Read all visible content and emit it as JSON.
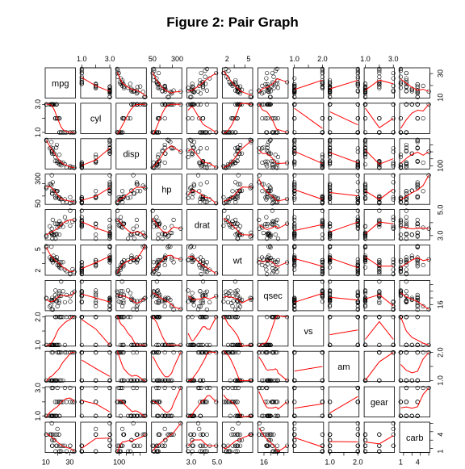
{
  "chart_data": {
    "type": "scatter",
    "title": "Figure 2: Pair Graph",
    "variables": [
      "mpg",
      "cyl",
      "disp",
      "hp",
      "drat",
      "wt",
      "qsec",
      "vs",
      "am",
      "gear",
      "carb"
    ],
    "axis_ticks": {
      "mpg": {
        "labels": [
          "10",
          "30"
        ],
        "range": [
          10.4,
          33.9
        ]
      },
      "cyl": {
        "labels": [
          "1.0",
          "3.0"
        ],
        "range": [
          1,
          3
        ]
      },
      "disp": {
        "labels": [
          "100"
        ],
        "range": [
          71.1,
          472
        ]
      },
      "hp": {
        "labels": [
          "50",
          "300"
        ],
        "range": [
          52,
          335
        ]
      },
      "drat": {
        "labels": [
          "3.0",
          "5.0"
        ],
        "range": [
          2.76,
          4.93
        ]
      },
      "wt": {
        "labels": [
          "2",
          "5"
        ],
        "range": [
          1.513,
          5.424
        ]
      },
      "qsec": {
        "labels": [
          "16"
        ],
        "range": [
          14.5,
          22.9
        ]
      },
      "vs": {
        "labels": [
          "1.0",
          "2.0"
        ],
        "range": [
          1,
          2
        ]
      },
      "am": {
        "labels": [
          "1.0",
          "2.0"
        ],
        "range": [
          1,
          2
        ]
      },
      "gear": {
        "labels": [
          "1.0",
          "3.0"
        ],
        "range": [
          1,
          3
        ]
      },
      "carb": {
        "labels": [
          "1",
          "4"
        ],
        "range": [
          1,
          6
        ]
      }
    },
    "points": [
      [
        21.0,
        2,
        160.0,
        110,
        3.9,
        2.62,
        16.46,
        1,
        2,
        2,
        4
      ],
      [
        21.0,
        2,
        160.0,
        110,
        3.9,
        2.875,
        17.02,
        1,
        2,
        2,
        4
      ],
      [
        22.8,
        1,
        108.0,
        93,
        3.85,
        2.32,
        18.61,
        2,
        2,
        2,
        1
      ],
      [
        21.4,
        2,
        258.0,
        110,
        3.08,
        3.215,
        19.44,
        2,
        1,
        1,
        1
      ],
      [
        18.7,
        3,
        360.0,
        175,
        3.15,
        3.44,
        17.02,
        1,
        1,
        1,
        2
      ],
      [
        18.1,
        2,
        225.0,
        105,
        2.76,
        3.46,
        20.22,
        2,
        1,
        1,
        1
      ],
      [
        14.3,
        3,
        360.0,
        245,
        3.21,
        3.57,
        15.84,
        1,
        1,
        1,
        4
      ],
      [
        24.4,
        1,
        146.7,
        62,
        3.69,
        3.19,
        20.0,
        2,
        1,
        2,
        2
      ],
      [
        22.8,
        1,
        140.8,
        95,
        3.92,
        3.15,
        22.9,
        2,
        1,
        2,
        2
      ],
      [
        19.2,
        2,
        167.6,
        123,
        3.92,
        3.44,
        18.3,
        2,
        1,
        2,
        4
      ],
      [
        17.8,
        2,
        167.6,
        123,
        3.92,
        3.44,
        18.9,
        2,
        1,
        2,
        4
      ],
      [
        16.4,
        3,
        275.8,
        180,
        3.07,
        4.07,
        17.4,
        1,
        1,
        1,
        3
      ],
      [
        17.3,
        3,
        275.8,
        180,
        3.07,
        3.73,
        17.6,
        1,
        1,
        1,
        3
      ],
      [
        15.2,
        3,
        275.8,
        180,
        3.07,
        3.78,
        18.0,
        1,
        1,
        1,
        3
      ],
      [
        10.4,
        3,
        472.0,
        205,
        2.93,
        5.25,
        17.98,
        1,
        1,
        1,
        4
      ],
      [
        10.4,
        3,
        460.0,
        215,
        3.0,
        5.424,
        17.82,
        1,
        1,
        1,
        4
      ],
      [
        14.7,
        3,
        440.0,
        230,
        3.23,
        5.345,
        17.42,
        1,
        1,
        1,
        4
      ],
      [
        32.4,
        1,
        78.7,
        66,
        4.08,
        2.2,
        19.47,
        2,
        2,
        2,
        1
      ],
      [
        30.4,
        1,
        75.7,
        52,
        4.93,
        1.615,
        18.52,
        2,
        2,
        2,
        2
      ],
      [
        33.9,
        1,
        71.1,
        65,
        4.22,
        1.835,
        19.9,
        2,
        2,
        2,
        1
      ],
      [
        21.5,
        1,
        120.1,
        97,
        3.7,
        2.465,
        20.01,
        2,
        1,
        1,
        1
      ],
      [
        15.5,
        3,
        318.0,
        150,
        2.76,
        3.52,
        16.87,
        1,
        1,
        1,
        2
      ],
      [
        15.2,
        3,
        304.0,
        150,
        3.15,
        3.435,
        17.3,
        1,
        1,
        1,
        2
      ],
      [
        13.3,
        3,
        350.0,
        245,
        3.73,
        3.84,
        15.41,
        1,
        1,
        1,
        4
      ],
      [
        19.2,
        3,
        400.0,
        175,
        3.08,
        3.845,
        17.05,
        1,
        1,
        1,
        2
      ],
      [
        27.3,
        1,
        79.0,
        66,
        4.08,
        1.935,
        18.9,
        2,
        2,
        2,
        1
      ],
      [
        26.0,
        1,
        120.3,
        91,
        4.43,
        2.14,
        16.7,
        1,
        2,
        3,
        2
      ],
      [
        30.4,
        1,
        95.1,
        113,
        3.77,
        1.513,
        16.9,
        2,
        2,
        3,
        2
      ],
      [
        15.8,
        3,
        351.0,
        264,
        4.22,
        3.17,
        14.5,
        1,
        2,
        3,
        4
      ],
      [
        19.7,
        2,
        145.0,
        175,
        3.62,
        2.77,
        15.5,
        1,
        2,
        3,
        5
      ],
      [
        15.0,
        3,
        301.0,
        335,
        3.54,
        3.57,
        14.6,
        1,
        2,
        3,
        6
      ],
      [
        21.4,
        1,
        121.0,
        109,
        4.11,
        2.78,
        18.6,
        2,
        2,
        2,
        2
      ]
    ],
    "smoother_color": "#ff0000",
    "point_color": "#000000"
  }
}
